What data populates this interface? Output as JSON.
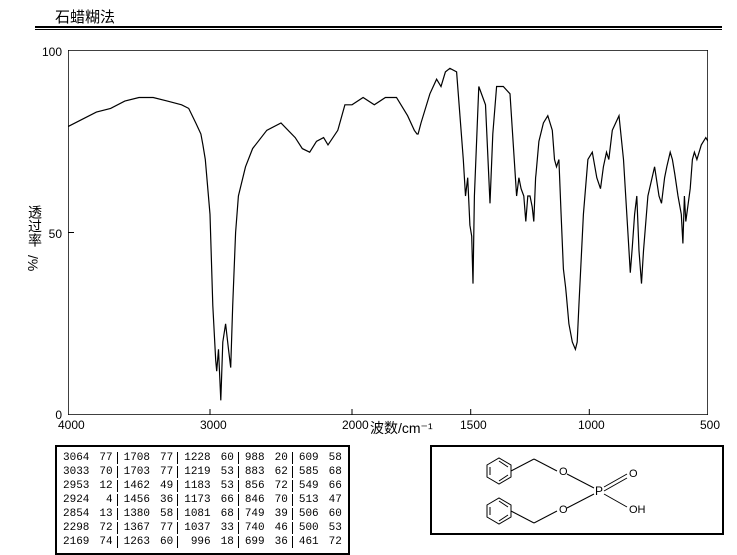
{
  "title": "石蜡糊法",
  "chart": {
    "type": "line",
    "x_axis": {
      "label": "波数/cm⁻¹",
      "min": 400,
      "max": 4000,
      "ticks": [
        4000,
        3000,
        2000,
        1500,
        1000,
        500
      ],
      "reversed": true
    },
    "y_axis": {
      "label": "透过率",
      "sublabel": "/%",
      "min": 0,
      "max": 100,
      "ticks": [
        0,
        50,
        100
      ]
    },
    "line_color": "#000000",
    "line_width": 1,
    "background_color": "#ffffff",
    "border_color": "#000000",
    "spectrum_points": [
      [
        4000,
        79
      ],
      [
        3900,
        81
      ],
      [
        3800,
        83
      ],
      [
        3700,
        84
      ],
      [
        3600,
        86
      ],
      [
        3500,
        87
      ],
      [
        3400,
        87
      ],
      [
        3300,
        86
      ],
      [
        3200,
        85
      ],
      [
        3150,
        84
      ],
      [
        3100,
        80
      ],
      [
        3064,
        77
      ],
      [
        3050,
        74
      ],
      [
        3033,
        70
      ],
      [
        3000,
        55
      ],
      [
        2980,
        30
      ],
      [
        2960,
        15
      ],
      [
        2953,
        12
      ],
      [
        2940,
        18
      ],
      [
        2924,
        4
      ],
      [
        2910,
        20
      ],
      [
        2890,
        25
      ],
      [
        2870,
        18
      ],
      [
        2854,
        13
      ],
      [
        2840,
        30
      ],
      [
        2820,
        50
      ],
      [
        2800,
        60
      ],
      [
        2750,
        68
      ],
      [
        2700,
        73
      ],
      [
        2600,
        78
      ],
      [
        2500,
        80
      ],
      [
        2400,
        76
      ],
      [
        2350,
        73
      ],
      [
        2298,
        72
      ],
      [
        2250,
        75
      ],
      [
        2200,
        76
      ],
      [
        2169,
        74
      ],
      [
        2100,
        78
      ],
      [
        2050,
        85
      ],
      [
        2000,
        85
      ],
      [
        1950,
        87
      ],
      [
        1900,
        85
      ],
      [
        1850,
        87
      ],
      [
        1800,
        87
      ],
      [
        1750,
        82
      ],
      [
        1720,
        78
      ],
      [
        1708,
        77
      ],
      [
        1703,
        77
      ],
      [
        1690,
        80
      ],
      [
        1650,
        88
      ],
      [
        1620,
        92
      ],
      [
        1600,
        90
      ],
      [
        1580,
        94
      ],
      [
        1560,
        95
      ],
      [
        1530,
        94
      ],
      [
        1500,
        70
      ],
      [
        1490,
        60
      ],
      [
        1480,
        65
      ],
      [
        1470,
        52
      ],
      [
        1462,
        49
      ],
      [
        1456,
        36
      ],
      [
        1450,
        60
      ],
      [
        1430,
        90
      ],
      [
        1400,
        85
      ],
      [
        1380,
        58
      ],
      [
        1367,
        77
      ],
      [
        1350,
        90
      ],
      [
        1320,
        90
      ],
      [
        1290,
        88
      ],
      [
        1260,
        60
      ],
      [
        1250,
        65
      ],
      [
        1240,
        62
      ],
      [
        1228,
        60
      ],
      [
        1219,
        53
      ],
      [
        1210,
        60
      ],
      [
        1200,
        60
      ],
      [
        1190,
        57
      ],
      [
        1183,
        53
      ],
      [
        1175,
        65
      ],
      [
        1173,
        66
      ],
      [
        1160,
        75
      ],
      [
        1140,
        80
      ],
      [
        1120,
        82
      ],
      [
        1100,
        78
      ],
      [
        1090,
        70
      ],
      [
        1081,
        68
      ],
      [
        1070,
        70
      ],
      [
        1060,
        55
      ],
      [
        1050,
        40
      ],
      [
        1040,
        35
      ],
      [
        1037,
        33
      ],
      [
        1025,
        25
      ],
      [
        1010,
        20
      ],
      [
        996,
        18
      ],
      [
        988,
        20
      ],
      [
        980,
        30
      ],
      [
        960,
        55
      ],
      [
        940,
        70
      ],
      [
        920,
        72
      ],
      [
        900,
        65
      ],
      [
        883,
        62
      ],
      [
        870,
        68
      ],
      [
        856,
        72
      ],
      [
        846,
        70
      ],
      [
        830,
        78
      ],
      [
        800,
        82
      ],
      [
        780,
        70
      ],
      [
        760,
        50
      ],
      [
        749,
        39
      ],
      [
        740,
        46
      ],
      [
        730,
        55
      ],
      [
        720,
        60
      ],
      [
        710,
        45
      ],
      [
        699,
        36
      ],
      [
        690,
        45
      ],
      [
        670,
        60
      ],
      [
        640,
        68
      ],
      [
        620,
        60
      ],
      [
        609,
        58
      ],
      [
        595,
        65
      ],
      [
        585,
        68
      ],
      [
        570,
        72
      ],
      [
        560,
        70
      ],
      [
        549,
        66
      ],
      [
        535,
        60
      ],
      [
        520,
        55
      ],
      [
        513,
        47
      ],
      [
        506,
        60
      ],
      [
        500,
        53
      ],
      [
        480,
        62
      ],
      [
        470,
        70
      ],
      [
        461,
        72
      ],
      [
        450,
        70
      ],
      [
        430,
        74
      ],
      [
        410,
        76
      ],
      [
        400,
        75
      ]
    ]
  },
  "peak_table": {
    "columns_per_group": 2,
    "groups": 5,
    "rows": [
      [
        3064,
        77,
        1708,
        77,
        1228,
        60,
        988,
        20,
        609,
        58
      ],
      [
        3033,
        70,
        1703,
        77,
        1219,
        53,
        883,
        62,
        585,
        68
      ],
      [
        2953,
        12,
        1462,
        49,
        1183,
        53,
        856,
        72,
        549,
        66
      ],
      [
        2924,
        4,
        1456,
        36,
        1173,
        66,
        846,
        70,
        513,
        47
      ],
      [
        2854,
        13,
        1380,
        58,
        1081,
        68,
        749,
        39,
        506,
        60
      ],
      [
        2298,
        72,
        1367,
        77,
        1037,
        33,
        740,
        46,
        500,
        53
      ],
      [
        2169,
        74,
        1263,
        60,
        996,
        18,
        699,
        36,
        461,
        72
      ]
    ]
  },
  "structure": {
    "label": "molecular-structure-dibenzyl-phosphate",
    "atoms": [
      "O",
      "O",
      "O",
      "P",
      "OH"
    ],
    "bond_color": "#000000"
  }
}
